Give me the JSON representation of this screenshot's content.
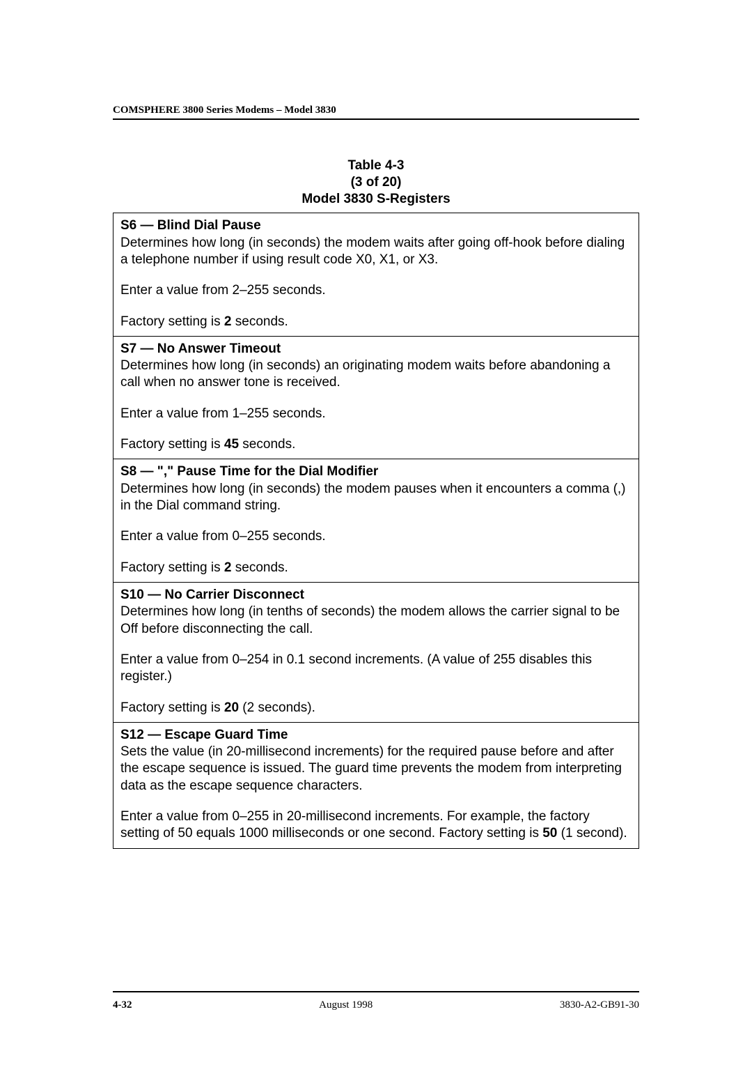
{
  "header": {
    "running_title": "COMSPHERE 3800 Series Modems – Model 3830"
  },
  "caption": {
    "line1": "Table 4-3",
    "line2": "(3 of 20)",
    "line3": "Model 3830 S-Registers"
  },
  "registers": [
    {
      "id": "S6",
      "title_prefix": "S6 ",
      "title_rest": " Blind Dial Pause",
      "desc": "Determines how long (in seconds) the modem waits after going off-hook before dialing a telephone number if using result code X0, X1, or X3.",
      "range": "Enter a value from 2–255 seconds.",
      "factory_pre": "Factory setting is ",
      "factory_val": "2",
      "factory_post": " seconds."
    },
    {
      "id": "S7",
      "title_prefix": "S7 ",
      "title_rest": " No Answer Timeout",
      "desc": "Determines how long (in seconds) an originating modem waits before abandoning a call when no answer tone is received.",
      "range": "Enter a value from 1–255 seconds.",
      "factory_pre": "Factory setting is ",
      "factory_val": "45",
      "factory_post": " seconds."
    },
    {
      "id": "S8",
      "title_prefix": "S8 ",
      "title_rest": " \",\" Pause Time for the Dial Modifier",
      "desc": "Determines how long (in seconds) the modem pauses when it encounters a comma (,) in the Dial command string.",
      "range": "Enter a value from 0–255 seconds.",
      "factory_pre": "Factory setting is ",
      "factory_val": "2",
      "factory_post": " seconds."
    },
    {
      "id": "S10",
      "title_prefix": "S10 ",
      "title_rest": " No Carrier Disconnect",
      "desc": "Determines how long (in tenths of seconds) the modem allows the carrier signal to be Off before disconnecting the call.",
      "range": "Enter a value from 0–254 in 0.1 second increments. (A value of 255 disables this register.)",
      "factory_pre": "Factory setting is ",
      "factory_val": "20",
      "factory_post": " (2 seconds)."
    },
    {
      "id": "S12",
      "title_prefix": "S12 ",
      "title_rest": " Escape Guard Time",
      "desc": "Sets the value (in 20-millisecond increments) for the required pause before and after the escape sequence is issued. The guard time prevents the modem from interpreting data as the escape sequence characters.",
      "range_pre": "Enter a value from 0–255 in 20-millisecond increments. For example, the factory setting of 50 equals 1000 milliseconds or one second. Factory setting is ",
      "range_val": "50",
      "range_post": " (1 second)."
    }
  ],
  "footer": {
    "page": "4-32",
    "date": "August 1998",
    "docnum": "3830-A2-GB91-30"
  },
  "dash": "—"
}
